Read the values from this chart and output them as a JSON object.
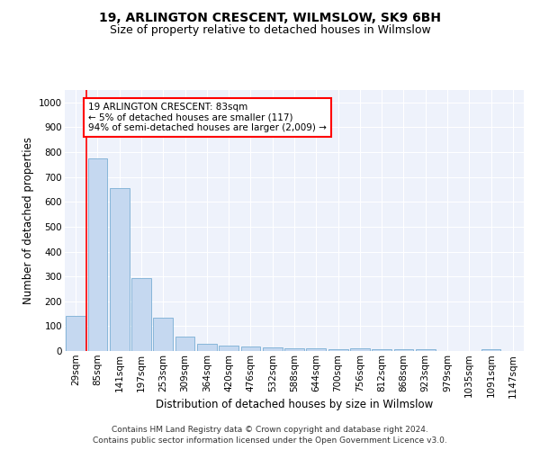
{
  "title": "19, ARLINGTON CRESCENT, WILMSLOW, SK9 6BH",
  "subtitle": "Size of property relative to detached houses in Wilmslow",
  "xlabel": "Distribution of detached houses by size in Wilmslow",
  "ylabel": "Number of detached properties",
  "categories": [
    "29sqm",
    "85sqm",
    "141sqm",
    "197sqm",
    "253sqm",
    "309sqm",
    "364sqm",
    "420sqm",
    "476sqm",
    "532sqm",
    "588sqm",
    "644sqm",
    "700sqm",
    "756sqm",
    "812sqm",
    "868sqm",
    "923sqm",
    "979sqm",
    "1035sqm",
    "1091sqm",
    "1147sqm"
  ],
  "values": [
    140,
    775,
    655,
    295,
    135,
    58,
    30,
    20,
    18,
    13,
    10,
    10,
    8,
    10,
    8,
    8,
    8,
    0,
    0,
    8,
    0
  ],
  "bar_color": "#c5d8f0",
  "bar_edgecolor": "#7aafd4",
  "annotation_text_line1": "19 ARLINGTON CRESCENT: 83sqm",
  "annotation_text_line2": "← 5% of detached houses are smaller (117)",
  "annotation_text_line3": "94% of semi-detached houses are larger (2,009) →",
  "annotation_box_facecolor": "white",
  "annotation_box_edgecolor": "red",
  "vline_color": "red",
  "ylim": [
    0,
    1050
  ],
  "yticks": [
    0,
    100,
    200,
    300,
    400,
    500,
    600,
    700,
    800,
    900,
    1000
  ],
  "footer_line1": "Contains HM Land Registry data © Crown copyright and database right 2024.",
  "footer_line2": "Contains public sector information licensed under the Open Government Licence v3.0.",
  "title_fontsize": 10,
  "subtitle_fontsize": 9,
  "xlabel_fontsize": 8.5,
  "ylabel_fontsize": 8.5,
  "tick_fontsize": 7.5,
  "footer_fontsize": 6.5,
  "annotation_fontsize": 7.5,
  "background_color": "#eef2fb"
}
